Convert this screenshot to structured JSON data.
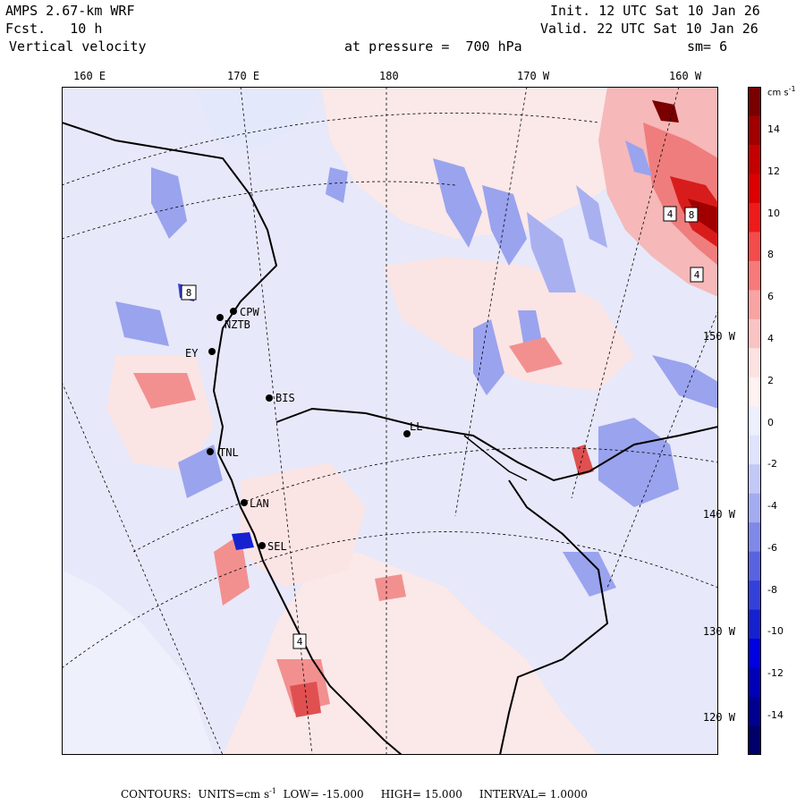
{
  "header": {
    "model": "AMPS 2.67-km WRF",
    "fcst_label": "Fcst.",
    "fcst_value": "10 h",
    "field": "Vertical velocity",
    "init_label": "Init.",
    "init_value": "12 UTC Sat 10 Jan 26",
    "valid_label": "Valid.",
    "valid_value": "22 UTC Sat 10 Jan 26",
    "pressure_label": "at pressure =",
    "pressure_value": "700 hPa",
    "smoothing": "sm= 6"
  },
  "map": {
    "longitude_labels": [
      "160 E",
      "170 E",
      "180",
      "170 W",
      "160 W"
    ],
    "latitude_labels": [
      "150 W",
      "140 W",
      "130 W",
      "120 W"
    ],
    "stations": [
      {
        "code": "CPW"
      },
      {
        "code": "NZTB"
      },
      {
        "code": "EY"
      },
      {
        "code": "BIS"
      },
      {
        "code": "LL"
      },
      {
        "code": "TNL"
      },
      {
        "code": "LAN"
      },
      {
        "code": "SEL"
      }
    ],
    "contour_labels": [
      "8",
      "4",
      "8",
      "4",
      "4"
    ],
    "colors": {
      "negative": "#3b4fd8",
      "weak_negative": "#e6e9fb",
      "weak_positive": "#fbe7e7",
      "positive": "#f08080",
      "strong_positive": "#8b0000",
      "grid": "#000000"
    }
  },
  "colorbar": {
    "unit": "cm s",
    "unit_exp": "-1",
    "ticks": [
      "14",
      "12",
      "10",
      "8",
      "6",
      "4",
      "2",
      "0",
      "-2",
      "-4",
      "-6",
      "-8",
      "-10",
      "-12",
      "-14"
    ],
    "bins": [
      "#7a0000",
      "#a00000",
      "#c40000",
      "#dc0000",
      "#ef1a1a",
      "#f44c4c",
      "#f77a7a",
      "#f9a3a3",
      "#fbc4c4",
      "#fde2e2",
      "#fef2f2",
      "#eef0fd",
      "#dfe3fb",
      "#c3c9f6",
      "#a4acf0",
      "#8089e8",
      "#5a63df",
      "#3341d8",
      "#1621cf",
      "#0000e0",
      "#0000b8",
      "#000090",
      "#00006a"
    ]
  },
  "footer": {
    "contours_label": "CONTOURS:",
    "units": "UNITS=cm s",
    "units_exp": "-1",
    "low": "LOW= -15.000",
    "high": "HIGH= 15.000",
    "interval": "INTERVAL= 1.0000"
  }
}
